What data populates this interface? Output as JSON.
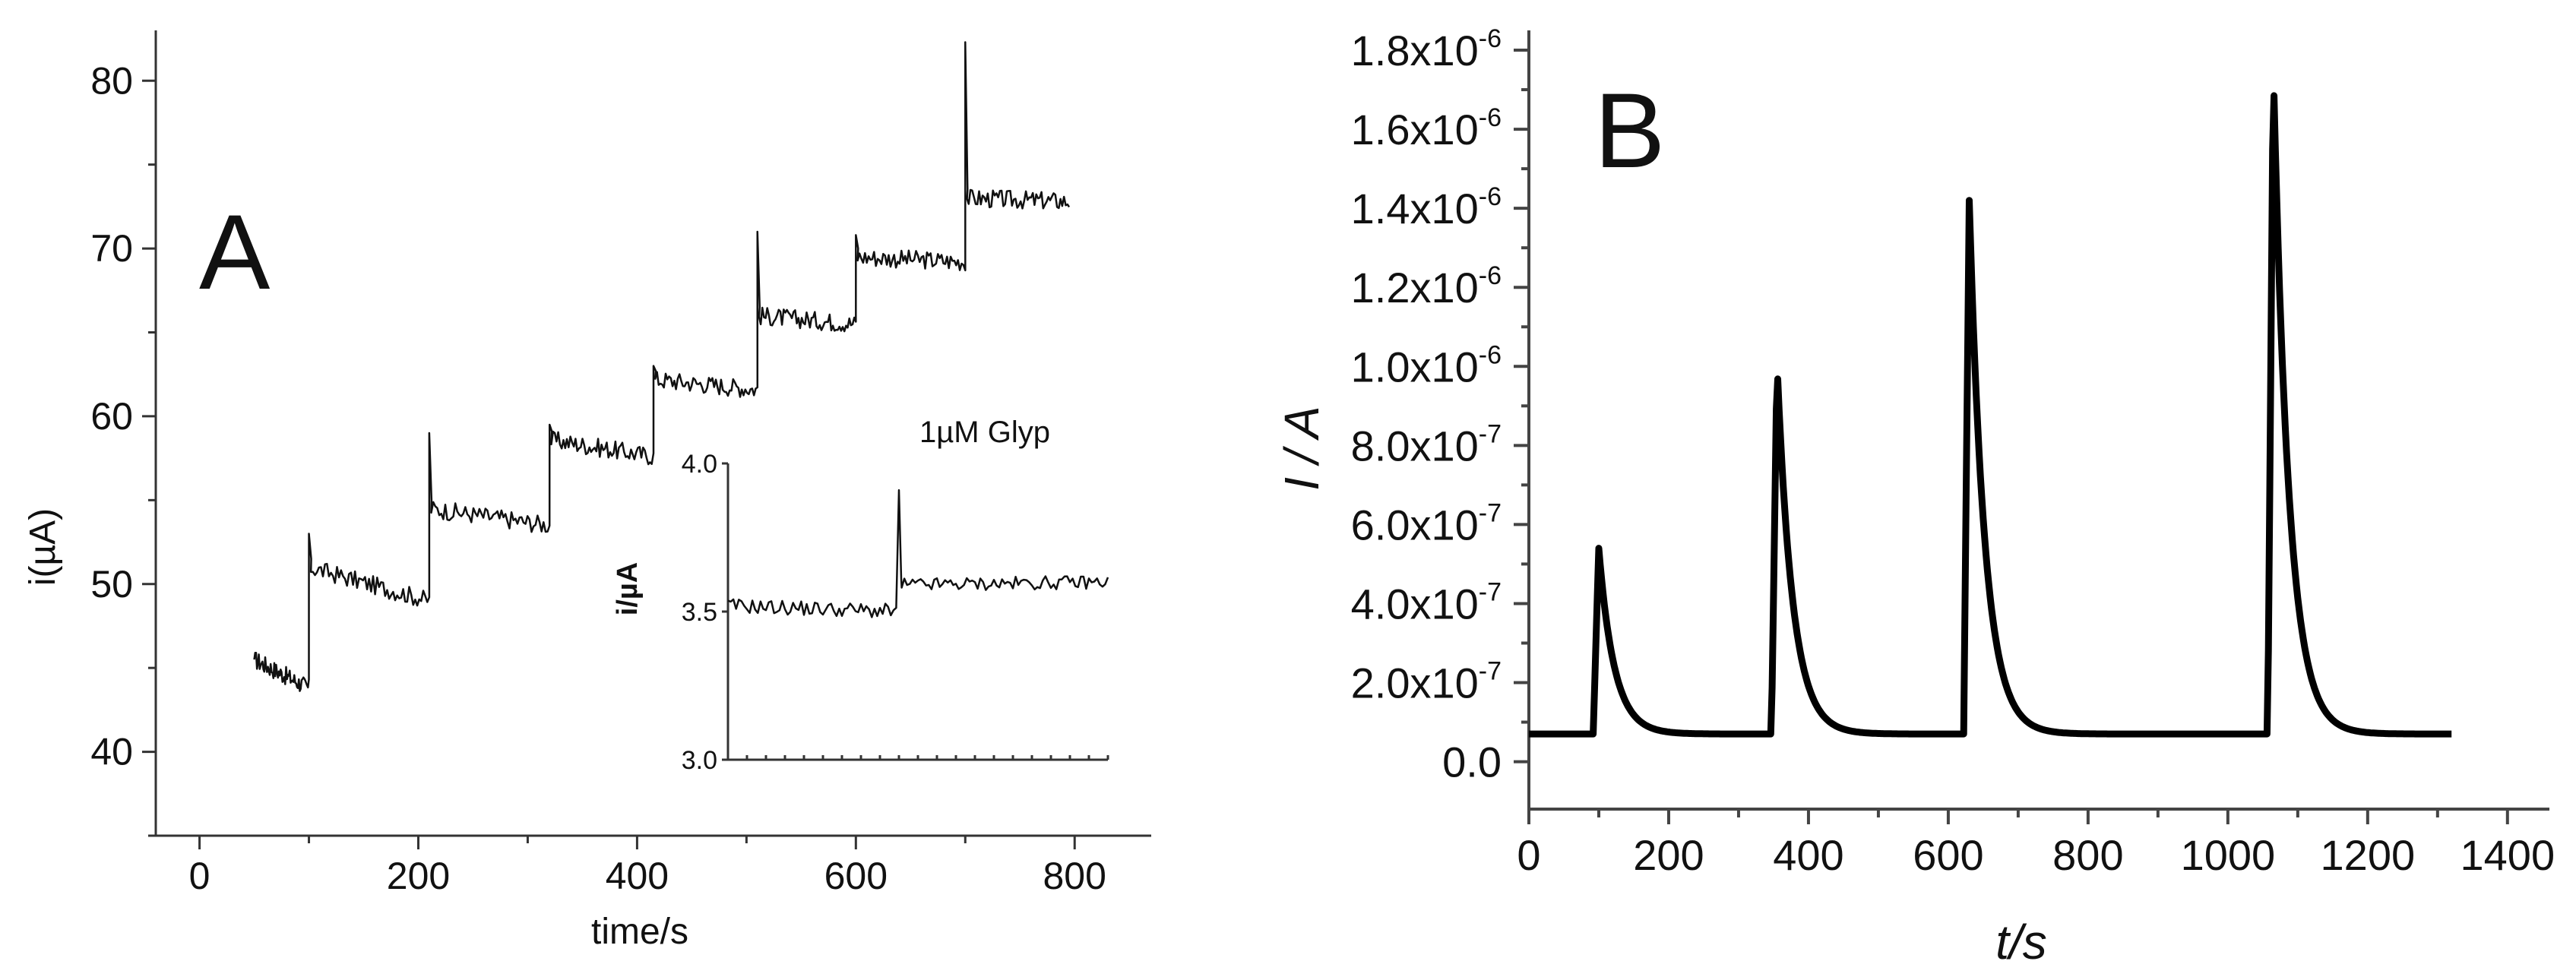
{
  "chart_data": [
    {
      "panel": "A",
      "type": "line",
      "title": "",
      "xlabel": "time/s",
      "ylabel": "i(µA)",
      "xlim": [
        -40,
        870
      ],
      "ylim": [
        35,
        83
      ],
      "xticks": [
        0,
        200,
        400,
        600,
        800
      ],
      "yticks": [
        40,
        50,
        60,
        70,
        80
      ],
      "series": [
        {
          "steps": [
            {
              "t0": 50,
              "t1": 100,
              "start": 45.5,
              "end": 43.8,
              "spike": null
            },
            {
              "t0": 100,
              "t1": 210,
              "start": 51.0,
              "end": 49.0,
              "spike": 53.0
            },
            {
              "t0": 210,
              "t1": 320,
              "start": 54.5,
              "end": 53.5,
              "spike": 59.0
            },
            {
              "t0": 320,
              "t1": 415,
              "start": 58.6,
              "end": 57.6,
              "spike": 59.5
            },
            {
              "t0": 415,
              "t1": 510,
              "start": 62.2,
              "end": 61.6,
              "spike": 63.0
            },
            {
              "t0": 510,
              "t1": 600,
              "start": 66.0,
              "end": 65.5,
              "spike": 71.0
            },
            {
              "t0": 600,
              "t1": 700,
              "start": 69.5,
              "end": 69.2,
              "spike": 70.8
            },
            {
              "t0": 700,
              "t1": 795,
              "start": 73.0,
              "end": 72.8,
              "spike": 82.3
            }
          ]
        }
      ],
      "inset": {
        "ylabel": "i/µA",
        "ylim": [
          3.0,
          4.0
        ],
        "yticks": [
          3.0,
          3.5,
          4.0
        ],
        "ytick_labels": [
          "3.0",
          "3.5",
          "4.0"
        ],
        "annotation": "1µM Glyp",
        "x": [
          0,
          100
        ],
        "baseline_before": 3.52,
        "step_at": 45,
        "spike": 3.91,
        "baseline_after": 3.59
      }
    },
    {
      "panel": "B",
      "type": "line",
      "title": "",
      "xlabel": "t/s",
      "ylabel": "I / A",
      "xlim": [
        0,
        1460
      ],
      "ylim": [
        -1.2e-07,
        1.85e-06
      ],
      "xticks": [
        0,
        200,
        400,
        600,
        800,
        1000,
        1200,
        1400
      ],
      "yticks": [
        0,
        2e-07,
        4e-07,
        6e-07,
        8e-07,
        1e-06,
        1.2e-06,
        1.4e-06,
        1.6e-06,
        1.8e-06
      ],
      "ytick_labels": [
        {
          "m": "0.0",
          "e": ""
        },
        {
          "m": "2.0x10",
          "e": "-7"
        },
        {
          "m": "4.0x10",
          "e": "-7"
        },
        {
          "m": "6.0x10",
          "e": "-7"
        },
        {
          "m": "8.0x10",
          "e": "-7"
        },
        {
          "m": "1.0x10",
          "e": "-6"
        },
        {
          "m": "1.2x10",
          "e": "-6"
        },
        {
          "m": "1.4x10",
          "e": "-6"
        },
        {
          "m": "1.6x10",
          "e": "-6"
        },
        {
          "m": "1.8x10",
          "e": "-6"
        }
      ],
      "series": [
        {
          "baseline": 7e-08,
          "x_range": [
            0,
            1320
          ],
          "peaks": [
            {
              "t": 100,
              "height": 5.4e-07
            },
            {
              "t": 355,
              "height": 1.01e-06
            },
            {
              "t": 630,
              "height": 1.42e-06
            },
            {
              "t": 1065,
              "height": 1.76e-06
            }
          ]
        }
      ]
    }
  ],
  "panel_labels": {
    "a": "A",
    "b": "B"
  }
}
